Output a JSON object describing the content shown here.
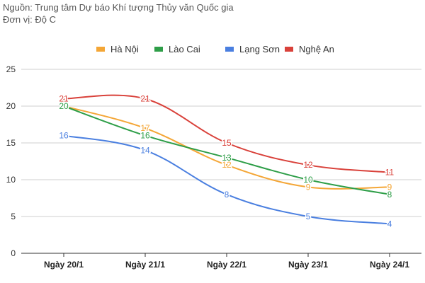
{
  "header": {
    "source": "Nguồn: Trung tâm Dự báo Khí tượng Thủy văn Quốc gia",
    "unit": "Đơn vị: Độ C"
  },
  "chart_data": {
    "type": "line",
    "title": "",
    "xlabel": "",
    "ylabel": "",
    "categories": [
      "Ngày 20/1",
      "Ngày 21/1",
      "Ngày 22/1",
      "Ngày 23/1",
      "Ngày 24/1"
    ],
    "ylim": [
      0,
      25
    ],
    "yticks": [
      "0",
      "5",
      "10",
      "15",
      "20",
      "25"
    ],
    "grid": true,
    "legend": "top",
    "smooth": true,
    "series": [
      {
        "name": "Hà Nội",
        "color": "#f4a636",
        "values": [
          20,
          17,
          12,
          9,
          9
        ]
      },
      {
        "name": "Lào Cai",
        "color": "#2e9e48",
        "values": [
          20,
          16,
          13,
          10,
          8
        ]
      },
      {
        "name": "Lạng Sơn",
        "color": "#4a7fe0",
        "values": [
          16,
          14,
          8,
          5,
          4
        ]
      },
      {
        "name": "Nghệ An",
        "color": "#d9413a",
        "values": [
          21,
          21,
          15,
          12,
          11
        ]
      }
    ]
  }
}
